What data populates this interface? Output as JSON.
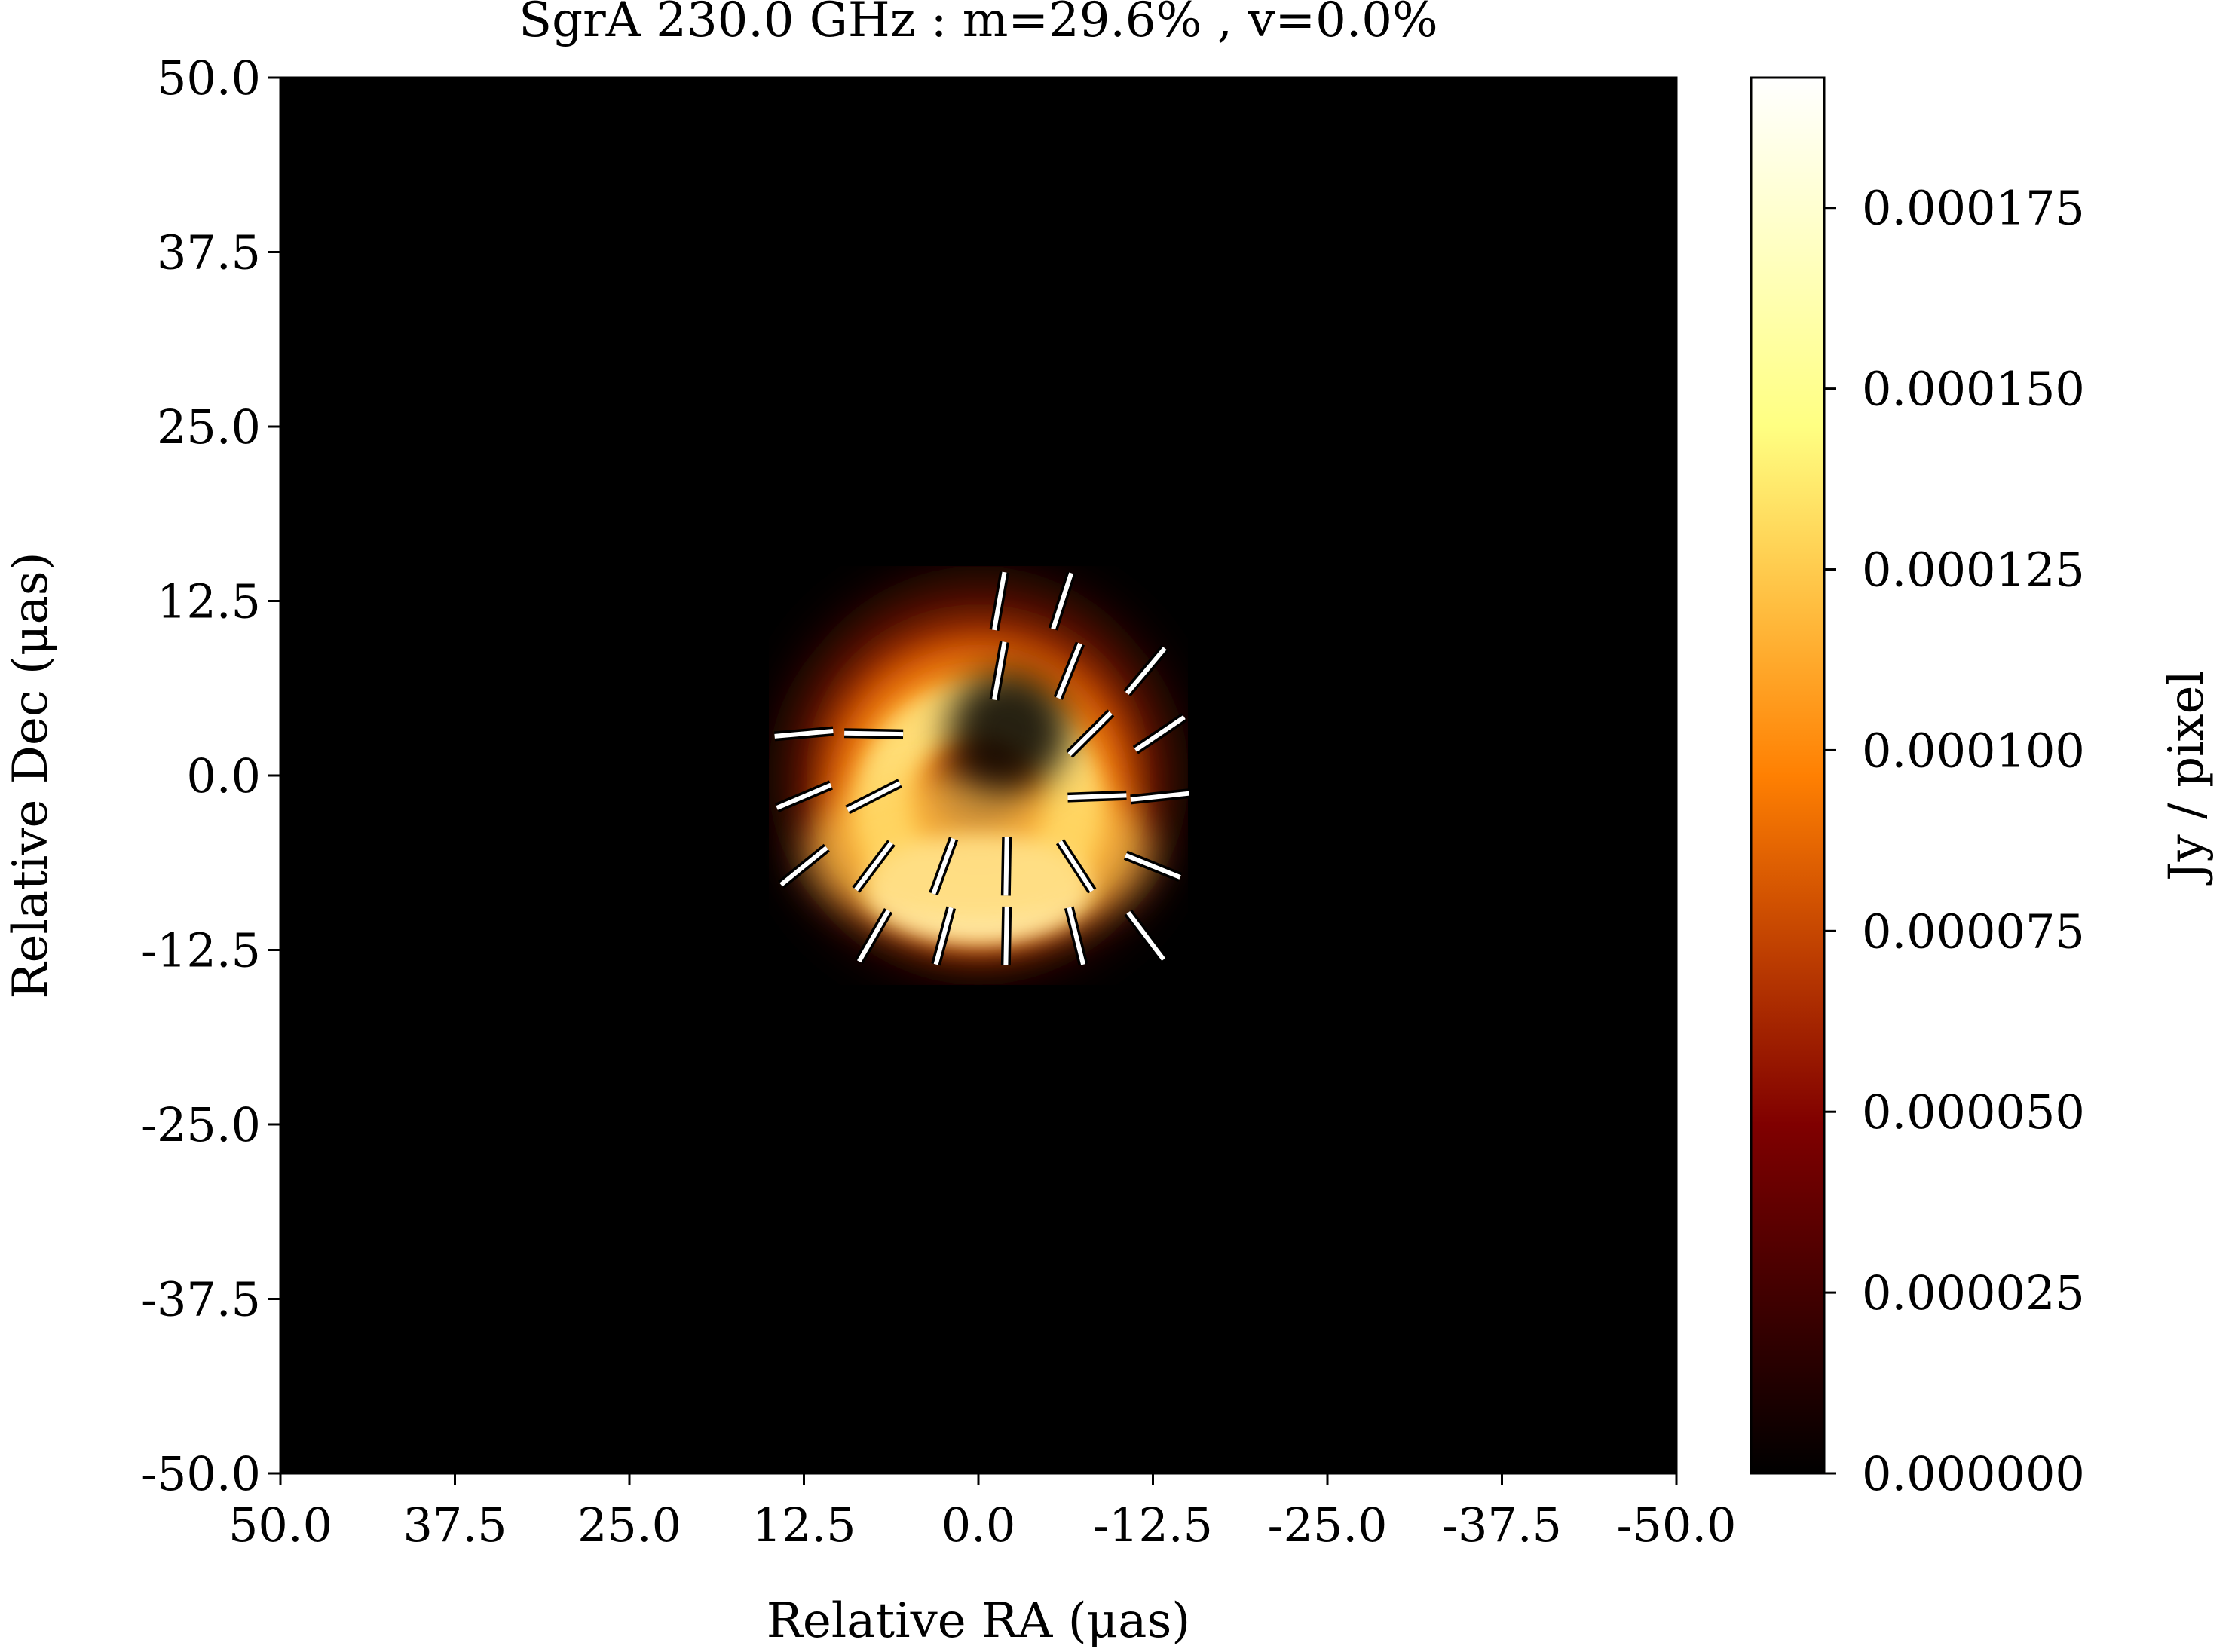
{
  "chart_data": {
    "type": "heatmap",
    "title": "SgrA 230.0 GHz : m=29.6% , v=0.0%",
    "xlabel": "Relative RA (μas)",
    "ylabel": "Relative Dec (μas)",
    "xlim": [
      50.0,
      -50.0
    ],
    "ylim": [
      -50.0,
      50.0
    ],
    "xticks": [
      50.0,
      37.5,
      25.0,
      12.5,
      0.0,
      -12.5,
      -25.0,
      -37.5,
      -50.0
    ],
    "xtick_labels": [
      "50.0",
      "37.5",
      "25.0",
      "12.5",
      "0.0",
      "-12.5",
      "-25.0",
      "-37.5",
      "-50.0"
    ],
    "yticks": [
      50.0,
      37.5,
      25.0,
      12.5,
      0.0,
      -12.5,
      -25.0,
      -37.5,
      -50.0
    ],
    "ytick_labels": [
      "50.0",
      "37.5",
      "25.0",
      "12.5",
      "0.0",
      "-12.5",
      "-25.0",
      "-37.5",
      "-50.0"
    ],
    "colormap": "afmhot",
    "background_color": "#000000",
    "colorbar": {
      "label": "Jy / pixel",
      "range": [
        0.0,
        0.000193
      ],
      "ticks": [
        0.0,
        2.5e-05,
        5e-05,
        7.5e-05,
        0.0001,
        0.000125,
        0.00015,
        0.000175
      ],
      "tick_labels": [
        "0.000000",
        "0.000025",
        "0.000050",
        "0.000075",
        "0.000100",
        "0.000125",
        "0.000150",
        "0.000175"
      ]
    },
    "image_features": {
      "ring_center": [
        0.0,
        0.0
      ],
      "ring_radius": 7.5,
      "ring_width_fwhm": 5.5,
      "brightest_region": "south",
      "peak_position": [
        0.0,
        -10.0
      ],
      "faint_region": "north-east"
    },
    "polarization_ticks": [
      {
        "x": 12.5,
        "y": 3.0,
        "angle_deg": 85
      },
      {
        "x": 7.5,
        "y": 3.0,
        "angle_deg": 91
      },
      {
        "x": 12.5,
        "y": -1.5,
        "angle_deg": 67
      },
      {
        "x": 7.5,
        "y": -1.5,
        "angle_deg": 63
      },
      {
        "x": 12.5,
        "y": -6.5,
        "angle_deg": 51
      },
      {
        "x": 7.5,
        "y": -6.5,
        "angle_deg": 37
      },
      {
        "x": 2.5,
        "y": -6.5,
        "angle_deg": 20
      },
      {
        "x": -2.0,
        "y": -6.5,
        "angle_deg": 1
      },
      {
        "x": -7.0,
        "y": -6.5,
        "angle_deg": -33
      },
      {
        "x": -12.5,
        "y": -6.5,
        "angle_deg": -68
      },
      {
        "x": 7.5,
        "y": -11.5,
        "angle_deg": 30
      },
      {
        "x": 2.5,
        "y": -11.5,
        "angle_deg": 15
      },
      {
        "x": -2.0,
        "y": -11.5,
        "angle_deg": 1
      },
      {
        "x": -7.0,
        "y": -11.5,
        "angle_deg": -14
      },
      {
        "x": -12.0,
        "y": -11.5,
        "angle_deg": -37
      },
      {
        "x": -8.5,
        "y": -1.5,
        "angle_deg": 88
      },
      {
        "x": -13.0,
        "y": -1.5,
        "angle_deg": 84
      },
      {
        "x": -8.0,
        "y": 3.0,
        "angle_deg": 45
      },
      {
        "x": -13.0,
        "y": 3.0,
        "angle_deg": 56
      },
      {
        "x": -1.5,
        "y": 7.5,
        "angle_deg": 10
      },
      {
        "x": -6.5,
        "y": 7.5,
        "angle_deg": 22
      },
      {
        "x": -12.0,
        "y": 7.5,
        "angle_deg": 40
      },
      {
        "x": -1.5,
        "y": 12.5,
        "angle_deg": 10
      },
      {
        "x": -6.0,
        "y": 12.5,
        "angle_deg": 18
      }
    ]
  }
}
